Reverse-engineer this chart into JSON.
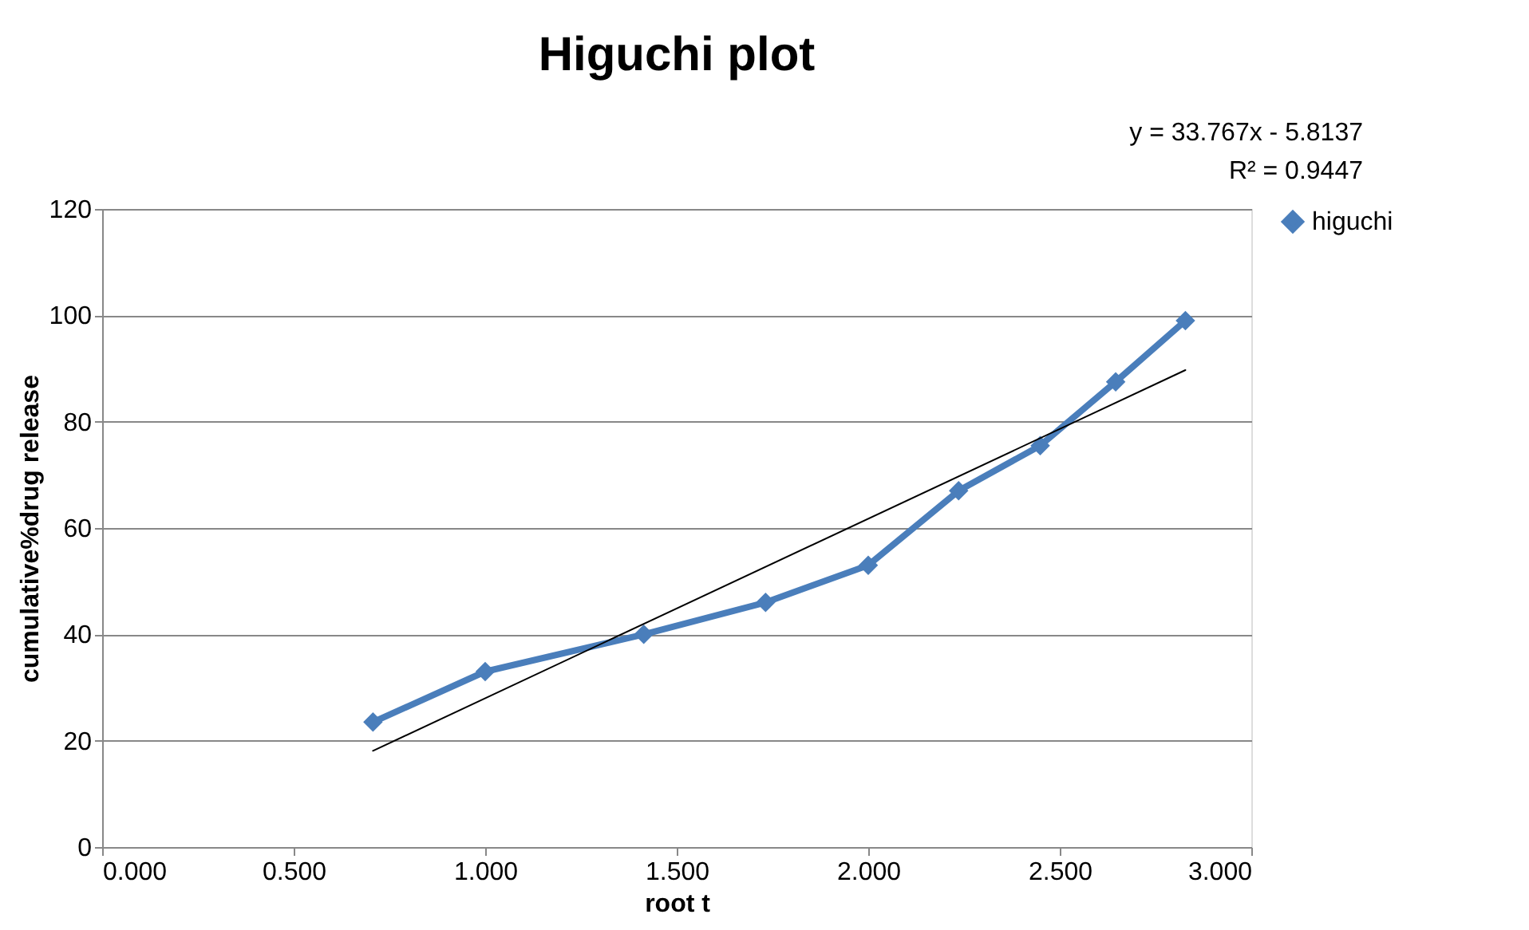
{
  "chart_data": {
    "type": "line",
    "title": "Higuchi plot",
    "xlabel": "root t",
    "ylabel": "cumulative%drug release",
    "annotations": [
      "y = 33.767x - 5.8137",
      "R² = 0.9447"
    ],
    "xlim": [
      0,
      3
    ],
    "xticks": [
      {
        "value": 0,
        "label": "0.000"
      },
      {
        "value": 0.5,
        "label": "0.500"
      },
      {
        "value": 1,
        "label": "1.000"
      },
      {
        "value": 1.5,
        "label": "1.500"
      },
      {
        "value": 2,
        "label": "2.000"
      },
      {
        "value": 2.5,
        "label": "2.500"
      },
      {
        "value": 3,
        "label": "3.000"
      }
    ],
    "ylim": [
      0,
      120
    ],
    "yticks": [
      0,
      20,
      40,
      60,
      80,
      100,
      120
    ],
    "grid": "y",
    "legend": "right",
    "marker": "diamond",
    "line_style": "solid",
    "series": [
      {
        "name": "higuchi",
        "color": "#4a7ebb",
        "x": [
          0.707,
          1.0,
          1.414,
          1.732,
          2.0,
          2.236,
          2.449,
          2.646,
          2.828
        ],
        "values": [
          23.5,
          33,
          40,
          46,
          53,
          67,
          75.5,
          87.5,
          99
        ]
      },
      {
        "type": "line",
        "color": "#000000",
        "marker": "none",
        "x": [
          0.707,
          2.828
        ],
        "values": [
          18.1,
          89.7
        ]
      }
    ]
  }
}
